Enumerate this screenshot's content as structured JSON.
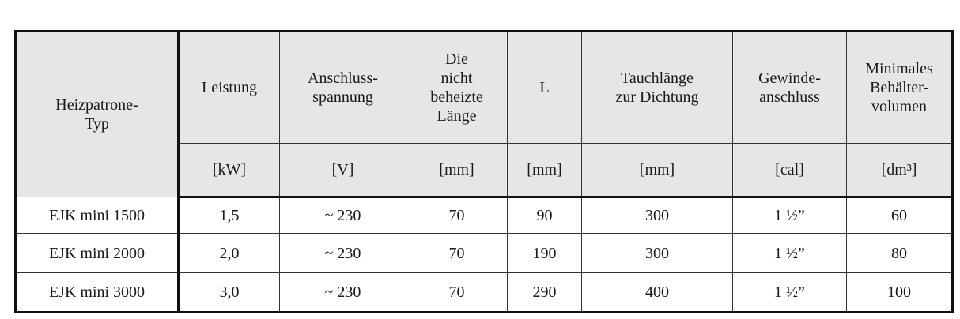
{
  "table": {
    "headers": [
      {
        "label": "Heizpatrone-\nTyp",
        "unit": ""
      },
      {
        "label": "Leistung",
        "unit": "[kW]"
      },
      {
        "label": "Anschluss-\nspannung",
        "unit": "[V]"
      },
      {
        "label": "Die\nnicht\nbeheizte\nLänge",
        "unit": "[mm]"
      },
      {
        "label": "L",
        "unit": "[mm]"
      },
      {
        "label": "Tauchlänge\nzur Dichtung",
        "unit": "[mm]"
      },
      {
        "label": "Gewinde-\nanschluss",
        "unit": "[cal]"
      },
      {
        "label": "Minimales\nBehälter-\nvolumen",
        "unit": "[dm³]"
      }
    ],
    "rows": [
      [
        "EJK mini 1500",
        "1,5",
        "~ 230",
        "70",
        "90",
        "300",
        "1 ½”",
        "60"
      ],
      [
        "EJK mini 2000",
        "2,0",
        "~ 230",
        "70",
        "190",
        "300",
        "1 ½”",
        "80"
      ],
      [
        "EJK mini 3000",
        "3,0",
        "~ 230",
        "70",
        "290",
        "400",
        "1 ½”",
        "100"
      ]
    ]
  }
}
